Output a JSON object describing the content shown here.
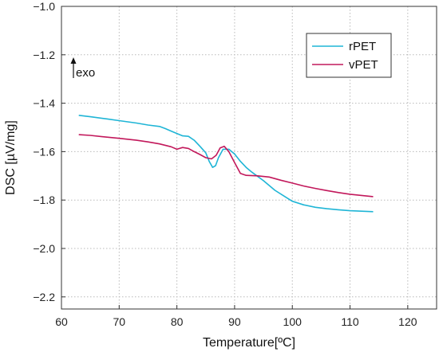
{
  "chart_data": {
    "type": "line",
    "xlabel": "Temperature[ºC]",
    "ylabel": "DSC [µV/mg]",
    "xlim": [
      60,
      125
    ],
    "ylim": [
      -2.25,
      -1.0
    ],
    "x_ticks": [
      60,
      70,
      80,
      90,
      100,
      110,
      120
    ],
    "x_tick_labels": [
      "60",
      "70",
      "80",
      "90",
      "100",
      "110",
      "120"
    ],
    "y_ticks": [
      -1.0,
      -1.2,
      -1.4,
      -1.6,
      -1.8,
      -2.0,
      -2.2
    ],
    "y_tick_labels": [
      "−1.0",
      "−1.2",
      "−1.4",
      "−1.6",
      "−1.8",
      "−2.0",
      "−2.2"
    ],
    "grid": "dotted",
    "legend_position": "top-right",
    "annotation": {
      "text": "exo",
      "arrow": "up"
    },
    "series": [
      {
        "name": "rPET",
        "color": "#1fb5d6",
        "points": [
          [
            63,
            -1.45
          ],
          [
            65,
            -1.456
          ],
          [
            68,
            -1.465
          ],
          [
            70,
            -1.472
          ],
          [
            73,
            -1.482
          ],
          [
            75,
            -1.49
          ],
          [
            77,
            -1.496
          ],
          [
            78,
            -1.505
          ],
          [
            79,
            -1.515
          ],
          [
            80,
            -1.525
          ],
          [
            81,
            -1.535
          ],
          [
            82,
            -1.537
          ],
          [
            83,
            -1.553
          ],
          [
            84,
            -1.578
          ],
          [
            85,
            -1.605
          ],
          [
            85.6,
            -1.64
          ],
          [
            86.2,
            -1.665
          ],
          [
            86.7,
            -1.658
          ],
          [
            87.2,
            -1.625
          ],
          [
            88,
            -1.59
          ],
          [
            89,
            -1.59
          ],
          [
            90,
            -1.61
          ],
          [
            91,
            -1.64
          ],
          [
            92,
            -1.665
          ],
          [
            93,
            -1.685
          ],
          [
            95,
            -1.72
          ],
          [
            97,
            -1.76
          ],
          [
            99,
            -1.79
          ],
          [
            100,
            -1.805
          ],
          [
            102,
            -1.82
          ],
          [
            104,
            -1.83
          ],
          [
            106,
            -1.836
          ],
          [
            108,
            -1.84
          ],
          [
            110,
            -1.844
          ],
          [
            112,
            -1.846
          ],
          [
            114,
            -1.848
          ]
        ]
      },
      {
        "name": "vPET",
        "color": "#c2185b",
        "points": [
          [
            63,
            -1.53
          ],
          [
            65,
            -1.533
          ],
          [
            67,
            -1.538
          ],
          [
            70,
            -1.545
          ],
          [
            73,
            -1.553
          ],
          [
            75,
            -1.56
          ],
          [
            77,
            -1.568
          ],
          [
            79,
            -1.58
          ],
          [
            80,
            -1.59
          ],
          [
            81,
            -1.583
          ],
          [
            82,
            -1.587
          ],
          [
            83,
            -1.6
          ],
          [
            84,
            -1.612
          ],
          [
            85,
            -1.625
          ],
          [
            86,
            -1.63
          ],
          [
            86.8,
            -1.615
          ],
          [
            87.5,
            -1.585
          ],
          [
            88.2,
            -1.578
          ],
          [
            89,
            -1.6
          ],
          [
            90,
            -1.645
          ],
          [
            91,
            -1.69
          ],
          [
            92,
            -1.698
          ],
          [
            94,
            -1.7
          ],
          [
            96,
            -1.705
          ],
          [
            98,
            -1.718
          ],
          [
            100,
            -1.73
          ],
          [
            102,
            -1.742
          ],
          [
            104,
            -1.752
          ],
          [
            106,
            -1.761
          ],
          [
            108,
            -1.769
          ],
          [
            110,
            -1.776
          ],
          [
            112,
            -1.781
          ],
          [
            114,
            -1.786
          ]
        ]
      }
    ]
  }
}
